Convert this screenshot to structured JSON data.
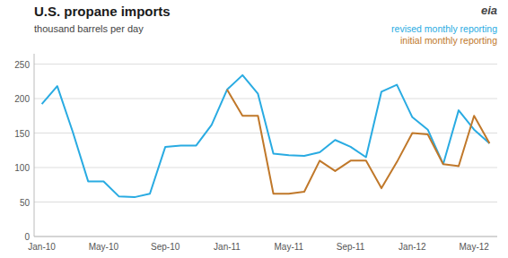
{
  "chart_data": {
    "type": "line",
    "title": "U.S. propane imports",
    "subtitle": "thousand barrels per day",
    "annotations": [
      "eia"
    ],
    "categories": [
      "Jan-10",
      null,
      null,
      null,
      "May-10",
      null,
      null,
      null,
      "Sep-10",
      null,
      null,
      null,
      "Jan-11",
      null,
      null,
      null,
      "May-11",
      null,
      null,
      null,
      "Sep-11",
      null,
      null,
      null,
      "Jan-12",
      null,
      null,
      null,
      "May-12",
      null
    ],
    "series": [
      {
        "name": "revised monthly reporting",
        "color": "#29ABE2",
        "values": [
          192,
          218,
          152,
          80,
          80,
          58,
          57,
          62,
          130,
          132,
          132,
          162,
          213,
          234,
          207,
          120,
          118,
          117,
          122,
          140,
          130,
          115,
          210,
          220,
          173,
          155,
          105,
          183,
          155,
          135
        ]
      },
      {
        "name": "initial monthly reporting",
        "color": "#C0782A",
        "values": [
          null,
          null,
          null,
          null,
          null,
          null,
          null,
          null,
          null,
          null,
          null,
          null,
          213,
          175,
          175,
          62,
          62,
          65,
          110,
          95,
          110,
          110,
          70,
          108,
          150,
          148,
          105,
          102,
          175,
          135
        ]
      }
    ],
    "ylim": [
      0,
      265
    ],
    "yticks": [
      0,
      50,
      100,
      150,
      200,
      250
    ],
    "grid": true
  }
}
